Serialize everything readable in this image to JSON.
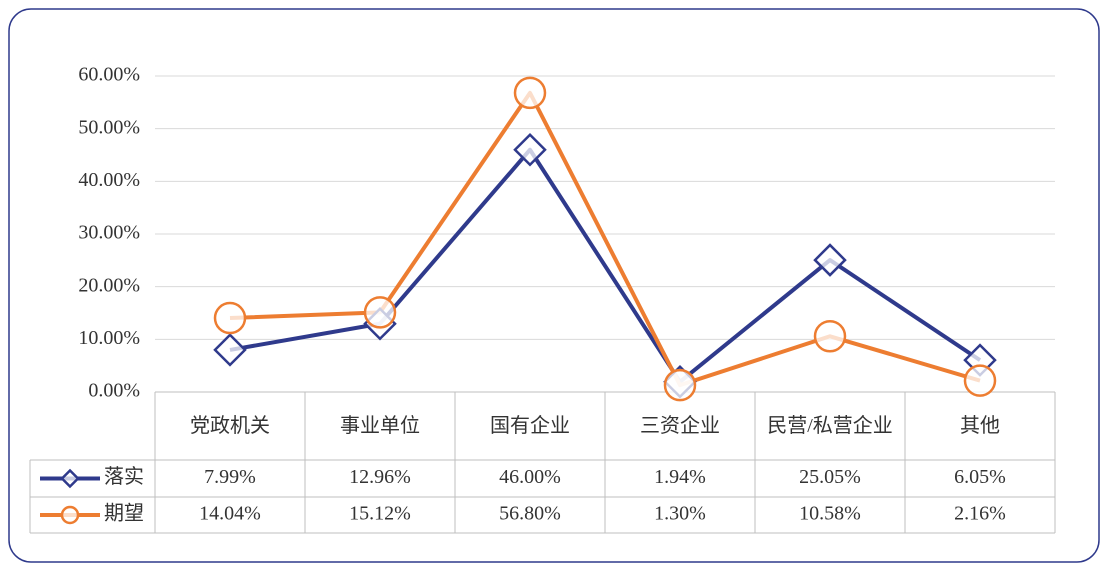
{
  "chart_data": {
    "type": "line",
    "categories": [
      "党政机关",
      "事业单位",
      "国有企业",
      "三资企业",
      "民营/私营企业",
      "其他"
    ],
    "series": [
      {
        "name": "落实",
        "color": "#2f3a8c",
        "marker": "diamond",
        "values": [
          7.99,
          12.96,
          46.0,
          1.94,
          25.05,
          6.05
        ],
        "value_labels": [
          "7.99%",
          "12.96%",
          "46.00%",
          "1.94%",
          "25.05%",
          "6.05%"
        ]
      },
      {
        "name": "期望",
        "color": "#ed7d31",
        "marker": "circle",
        "values": [
          14.04,
          15.12,
          56.8,
          1.3,
          10.58,
          2.16
        ],
        "value_labels": [
          "14.04%",
          "15.12%",
          "56.80%",
          "1.30%",
          "10.58%",
          "2.16%"
        ]
      }
    ],
    "ylim": [
      0,
      60
    ],
    "yticks": [
      {
        "value": 0,
        "label": "0.00%"
      },
      {
        "value": 10,
        "label": "10.00%"
      },
      {
        "value": 20,
        "label": "20.00%"
      },
      {
        "value": 30,
        "label": "30.00%"
      },
      {
        "value": 40,
        "label": "40.00%"
      },
      {
        "value": 50,
        "label": "50.00%"
      },
      {
        "value": 60,
        "label": "60.00%"
      }
    ],
    "grid": true
  }
}
